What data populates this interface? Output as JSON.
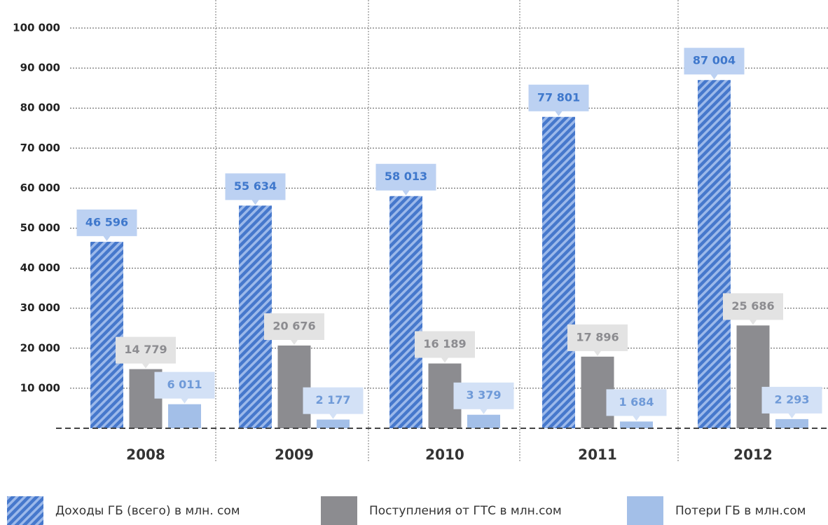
{
  "chart_data": {
    "type": "bar",
    "categories": [
      "2008",
      "2009",
      "2010",
      "2011",
      "2012"
    ],
    "series": [
      {
        "name": "Доходы ГБ (всего) в млн. сом",
        "color": "#4678cc",
        "values": [
          46596,
          55634,
          58013,
          77801,
          87004
        ],
        "value_labels": [
          "46 596",
          "55 634",
          "58 013",
          "77 801",
          "87 004"
        ]
      },
      {
        "name": "Поступления от ГТС в млн.сом",
        "color": "#8c8c90",
        "values": [
          14779,
          20676,
          16189,
          17896,
          25686
        ],
        "value_labels": [
          "14 779",
          "20 676",
          "16 189",
          "17 896",
          "25 686"
        ]
      },
      {
        "name": "Потери ГБ в млн.сом",
        "color": "#a3bfe8",
        "values": [
          6011,
          2177,
          3379,
          1684,
          2293
        ],
        "value_labels": [
          "6 011",
          "2 177",
          "3 379",
          "1 684",
          "2 293"
        ]
      }
    ],
    "ylim": [
      0,
      100000
    ],
    "yticks": [
      {
        "value": 10000,
        "label": "10 000"
      },
      {
        "value": 20000,
        "label": "20 000"
      },
      {
        "value": 30000,
        "label": "30 000"
      },
      {
        "value": 40000,
        "label": "40 000"
      },
      {
        "value": 50000,
        "label": "50 000"
      },
      {
        "value": 60000,
        "label": "60 000"
      },
      {
        "value": 70000,
        "label": "70 000"
      },
      {
        "value": 80000,
        "label": "80 000"
      },
      {
        "value": 90000,
        "label": "90 000"
      },
      {
        "value": 100000,
        "label": "100 000"
      }
    ],
    "grid": true
  }
}
